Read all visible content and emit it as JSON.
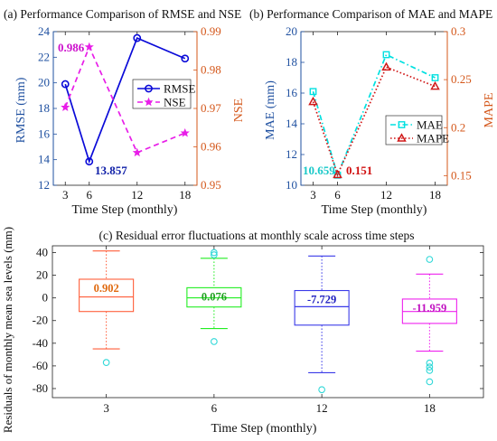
{
  "chart_data": [
    {
      "type": "line",
      "title": "(a) Performance Comparison of RMSE and NSE",
      "xlabel": "Time Step (monthly)",
      "ylabel_left": "RMSE (mm)",
      "ylabel_right": "NSE",
      "x": [
        3,
        6,
        12,
        18
      ],
      "xticks": [
        "3",
        "6",
        "12",
        "18"
      ],
      "ylim_left": [
        12,
        24
      ],
      "yticks_left": [
        12,
        14,
        16,
        18,
        20,
        22,
        24
      ],
      "ylim_right": [
        0.95,
        0.99
      ],
      "yticks_right": [
        0.95,
        0.96,
        0.97,
        0.98,
        0.99
      ],
      "series": [
        {
          "name": "RMSE",
          "axis": "left",
          "values": [
            19.9,
            13.857,
            23.5,
            21.9
          ],
          "color": "#0a0ad8",
          "marker": "circle",
          "dash": "solid"
        },
        {
          "name": "NSE",
          "axis": "right",
          "values": [
            0.9703,
            0.986,
            0.9585,
            0.9636
          ],
          "color": "#e81ee8",
          "marker": "star",
          "dash": "dashed"
        }
      ],
      "annotations": [
        {
          "text": "0.986",
          "color": "#cc10cc"
        },
        {
          "text": "13.857",
          "color": "#1020a8"
        }
      ],
      "legend": "center-right",
      "left_axis_color": "#1f50a0",
      "right_axis_color": "#d4571a"
    },
    {
      "type": "line",
      "title": "(b) Performance Comparison of MAE and MAPE",
      "xlabel": "Time Step (monthly)",
      "ylabel_left": "MAE (mm)",
      "ylabel_right": "MAPE",
      "x": [
        3,
        6,
        12,
        18
      ],
      "xticks": [
        "3",
        "6",
        "12",
        "18"
      ],
      "ylim_left": [
        10,
        20
      ],
      "yticks_left": [
        10,
        12,
        14,
        16,
        18,
        20
      ],
      "ylim_right": [
        0.14,
        0.3
      ],
      "yticks_right": [
        0.15,
        0.2,
        0.25,
        0.3
      ],
      "series": [
        {
          "name": "MAE",
          "axis": "left",
          "values": [
            16.1,
            10.659,
            18.5,
            17.0
          ],
          "color": "#00e0e0",
          "marker": "square",
          "dash": "dashdot"
        },
        {
          "name": "MAPE",
          "axis": "right",
          "values": [
            0.227,
            0.151,
            0.263,
            0.243
          ],
          "color": "#d01818",
          "marker": "triangle",
          "dash": "dotted"
        }
      ],
      "annotations": [
        {
          "text": "10.659",
          "color": "#18c8c8"
        },
        {
          "text": "0.151",
          "color": "#d01010"
        }
      ],
      "legend": "lower-right",
      "left_axis_color": "#1f50a0",
      "right_axis_color": "#d4571a"
    },
    {
      "type": "box",
      "title": "(c) Residual error fluctuations at monthly scale across time steps",
      "xlabel": "Time Step (monthly)",
      "ylabel": "Residuals of monthly mean sea levels (mm)",
      "categories": [
        "3",
        "6",
        "12",
        "18"
      ],
      "ylim": [
        -88,
        46
      ],
      "yticks": [
        -80,
        -60,
        -40,
        -20,
        0,
        20,
        40
      ],
      "boxes": [
        {
          "label": "0.902",
          "whisker_low": -45,
          "q1": -12,
          "median": 0.902,
          "q3": 16.5,
          "whisker_high": 41.5,
          "outliers": [
            -57
          ],
          "color": "#ff5e3a",
          "label_color": "#e06a10",
          "outlier_color": "#30d8d8"
        },
        {
          "label": "0.076",
          "whisker_low": -27,
          "q1": -8,
          "median": 0.076,
          "q3": 9,
          "whisker_high": 35,
          "outliers": [
            -38.5,
            38,
            40
          ],
          "color": "#22ee22",
          "label_color": "#20a020",
          "outlier_color": "#30d8d8"
        },
        {
          "label": "-7.729",
          "whisker_low": -66,
          "q1": -24,
          "median": -7.729,
          "q3": 6.5,
          "whisker_high": 37,
          "outliers": [
            -81
          ],
          "color": "#3a3ae8",
          "label_color": "#2020c0",
          "outlier_color": "#30d8d8"
        },
        {
          "label": "-11.959",
          "whisker_low": -47,
          "q1": -22.5,
          "median": -11.959,
          "q3": -1,
          "whisker_high": 21,
          "outliers": [
            34,
            -57.5,
            -61,
            -64,
            -74
          ],
          "color": "#ee22ee",
          "label_color": "#c010c0",
          "outlier_color": "#30d8d8"
        }
      ]
    }
  ]
}
